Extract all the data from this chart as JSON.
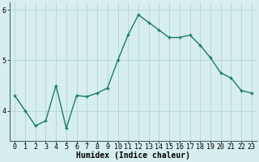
{
  "xlabel": "Humidex (Indice chaleur)",
  "x": [
    0,
    1,
    2,
    3,
    4,
    5,
    6,
    7,
    8,
    9,
    10,
    11,
    12,
    13,
    14,
    15,
    16,
    17,
    18,
    19,
    20,
    21,
    22,
    23
  ],
  "y": [
    4.3,
    4.0,
    3.7,
    3.8,
    4.5,
    3.65,
    4.3,
    4.28,
    4.35,
    4.45,
    5.0,
    5.5,
    5.9,
    5.75,
    5.6,
    5.45,
    5.45,
    5.5,
    5.3,
    5.05,
    4.75,
    4.65,
    4.4,
    4.35
  ],
  "line_color": "#1a7a6e",
  "marker": "+",
  "marker_size": 3,
  "background_color": "#d7eeee",
  "grid_color": "#b8d8d8",
  "ylim": [
    3.4,
    6.15
  ],
  "yticks": [
    4,
    5,
    6
  ],
  "xlim": [
    -0.5,
    23.5
  ],
  "tick_fontsize": 6,
  "xlabel_fontsize": 7
}
